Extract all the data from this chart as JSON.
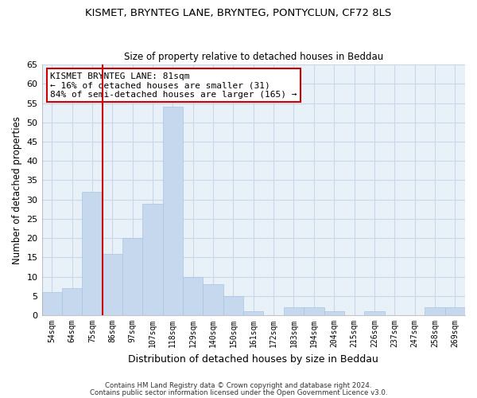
{
  "title": "KISMET, BRYNTEG LANE, BRYNTEG, PONTYCLUN, CF72 8LS",
  "subtitle": "Size of property relative to detached houses in Beddau",
  "xlabel": "Distribution of detached houses by size in Beddau",
  "ylabel": "Number of detached properties",
  "bar_labels": [
    "54sqm",
    "64sqm",
    "75sqm",
    "86sqm",
    "97sqm",
    "107sqm",
    "118sqm",
    "129sqm",
    "140sqm",
    "150sqm",
    "161sqm",
    "172sqm",
    "183sqm",
    "194sqm",
    "204sqm",
    "215sqm",
    "226sqm",
    "237sqm",
    "247sqm",
    "258sqm",
    "269sqm"
  ],
  "bar_values": [
    6,
    7,
    32,
    16,
    20,
    29,
    54,
    10,
    8,
    5,
    1,
    0,
    2,
    2,
    1,
    0,
    1,
    0,
    0,
    2,
    2
  ],
  "bar_color": "#c5d8ed",
  "bar_edge_color": "#a8c4e0",
  "grid_color": "#c8d8e8",
  "ylim": [
    0,
    65
  ],
  "yticks": [
    0,
    5,
    10,
    15,
    20,
    25,
    30,
    35,
    40,
    45,
    50,
    55,
    60,
    65
  ],
  "vline_color": "#cc0000",
  "annotation_line1": "KISMET BRYNTEG LANE: 81sqm",
  "annotation_line2": "← 16% of detached houses are smaller (31)",
  "annotation_line3": "84% of semi-detached houses are larger (165) →",
  "annotation_box_color": "#ffffff",
  "annotation_box_edge": "#cc0000",
  "footnote1": "Contains HM Land Registry data © Crown copyright and database right 2024.",
  "footnote2": "Contains public sector information licensed under the Open Government Licence v3.0.",
  "fig_background": "#ffffff",
  "plot_background": "#e8f0f8"
}
